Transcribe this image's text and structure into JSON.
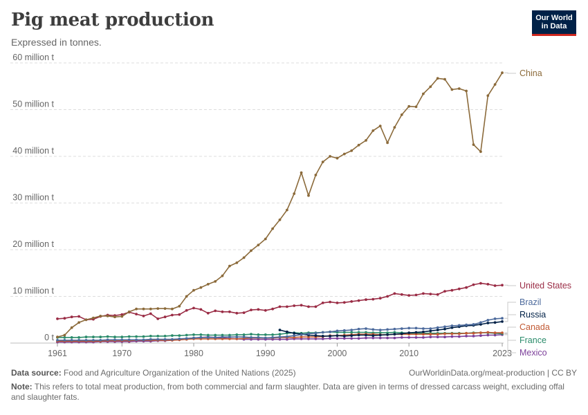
{
  "header": {
    "title": "Pig meat production",
    "subtitle": "Expressed in tonnes.",
    "logo_line1": "Our World",
    "logo_line2": "in Data"
  },
  "footer": {
    "source_label": "Data source:",
    "source_text": "Food and Agriculture Organization of the United Nations (2025)",
    "url": "OurWorldinData.org/meat-production | CC BY",
    "note_label": "Note:",
    "note_text": "This refers to total meat production, from both commercial and farm slaughter. Data are given in terms of dressed carcass weight, excluding offal and slaughter fats."
  },
  "chart_data": {
    "type": "line",
    "title": "Pig meat production",
    "subtitle": "Expressed in tonnes.",
    "ylim": [
      0,
      60000000
    ],
    "y_ticks": [
      {
        "value": 0,
        "label": "0 t"
      },
      {
        "value": 10000000,
        "label": "10 million t"
      },
      {
        "value": 20000000,
        "label": "20 million t"
      },
      {
        "value": 30000000,
        "label": "30 million t"
      },
      {
        "value": 40000000,
        "label": "40 million t"
      },
      {
        "value": 50000000,
        "label": "50 million t"
      },
      {
        "value": 60000000,
        "label": "60 million t"
      }
    ],
    "x_ticks": [
      1961,
      1970,
      1980,
      1990,
      2000,
      2010,
      2023
    ],
    "x_range": [
      1961,
      2023
    ],
    "grid": true,
    "legend": "right (inline labels)",
    "series": [
      {
        "name": "China",
        "color": "#8b6a3a",
        "x_start": 1961,
        "values": [
          1.3,
          1.7,
          3.3,
          4.4,
          5.0,
          5.4,
          5.8,
          5.8,
          5.6,
          5.7,
          6.7,
          7.3,
          7.3,
          7.3,
          7.4,
          7.4,
          7.3,
          7.9,
          10.0,
          11.3,
          11.9,
          12.6,
          13.2,
          14.4,
          16.5,
          17.2,
          18.3,
          19.8,
          21.0,
          22.3,
          24.5,
          26.4,
          28.5,
          32.0,
          36.5,
          31.6,
          36.0,
          38.8,
          40.0,
          39.6,
          40.5,
          41.2,
          42.4,
          43.4,
          45.5,
          46.5,
          42.9,
          46.2,
          48.9,
          50.7,
          50.6,
          53.4,
          54.9,
          56.7,
          56.5,
          54.3,
          54.5,
          54.0,
          42.5,
          41.0,
          53.0,
          55.4,
          57.9
        ]
      },
      {
        "name": "United States",
        "color": "#9a2c45",
        "x_start": 1961,
        "values": [
          5.2,
          5.3,
          5.6,
          5.7,
          5.0,
          5.1,
          5.7,
          6.0,
          5.9,
          6.1,
          6.6,
          6.2,
          5.8,
          6.3,
          5.2,
          5.6,
          6.0,
          6.1,
          7.0,
          7.5,
          7.2,
          6.4,
          6.9,
          6.7,
          6.7,
          6.4,
          6.5,
          7.1,
          7.2,
          7.0,
          7.3,
          7.8,
          7.8,
          8.0,
          8.1,
          7.8,
          7.8,
          8.6,
          8.8,
          8.6,
          8.7,
          8.9,
          9.1,
          9.3,
          9.4,
          9.6,
          10.0,
          10.6,
          10.4,
          10.2,
          10.3,
          10.6,
          10.5,
          10.4,
          11.1,
          11.3,
          11.6,
          11.9,
          12.5,
          12.8,
          12.6,
          12.3,
          12.4
        ]
      },
      {
        "name": "Brazil",
        "color": "#4c6a9c",
        "x_start": 1961,
        "values": [
          0.6,
          0.6,
          0.6,
          0.6,
          0.6,
          0.6,
          0.6,
          0.7,
          0.7,
          0.7,
          0.7,
          0.7,
          0.7,
          0.8,
          0.8,
          0.8,
          0.8,
          0.9,
          1.0,
          1.1,
          1.2,
          1.2,
          1.2,
          1.3,
          1.3,
          1.3,
          1.3,
          1.2,
          1.2,
          1.1,
          1.2,
          1.3,
          1.4,
          1.6,
          1.8,
          2.0,
          2.1,
          2.3,
          2.4,
          2.6,
          2.7,
          2.8,
          3.0,
          3.1,
          2.9,
          2.8,
          2.9,
          3.0,
          3.1,
          3.2,
          3.2,
          3.1,
          3.1,
          3.3,
          3.5,
          3.7,
          3.8,
          3.9,
          4.0,
          4.4,
          4.9,
          5.2,
          5.3
        ]
      },
      {
        "name": "Russia",
        "color": "#002147",
        "x_start": 1992,
        "values": [
          2.8,
          2.4,
          2.1,
          1.9,
          1.7,
          1.6,
          1.5,
          1.5,
          1.6,
          1.5,
          1.6,
          1.7,
          1.7,
          1.6,
          1.7,
          1.8,
          1.9,
          2.0,
          2.2,
          2.3,
          2.4,
          2.6,
          2.8,
          3.0,
          3.3,
          3.5,
          3.7,
          3.8,
          4.0,
          4.3,
          4.4,
          4.6
        ]
      },
      {
        "name": "Canada",
        "color": "#c15933",
        "x_start": 1961,
        "values": [
          0.4,
          0.4,
          0.4,
          0.4,
          0.4,
          0.4,
          0.4,
          0.5,
          0.5,
          0.5,
          0.5,
          0.6,
          0.6,
          0.6,
          0.6,
          0.6,
          0.6,
          0.7,
          0.8,
          0.9,
          0.9,
          0.9,
          0.9,
          0.9,
          0.9,
          0.9,
          1.0,
          1.1,
          1.1,
          1.1,
          1.1,
          1.2,
          1.2,
          1.2,
          1.3,
          1.3,
          1.3,
          1.4,
          1.6,
          1.6,
          1.7,
          1.8,
          1.9,
          1.9,
          1.9,
          1.8,
          1.8,
          1.9,
          1.9,
          1.9,
          1.9,
          1.9,
          1.9,
          1.9,
          2.0,
          2.0,
          2.0,
          2.1,
          2.1,
          2.2,
          2.3,
          2.2,
          2.2
        ]
      },
      {
        "name": "France",
        "color": "#2a8b6a",
        "x_start": 1961,
        "values": [
          1.2,
          1.2,
          1.2,
          1.2,
          1.3,
          1.3,
          1.3,
          1.4,
          1.3,
          1.3,
          1.4,
          1.4,
          1.4,
          1.5,
          1.5,
          1.5,
          1.6,
          1.6,
          1.7,
          1.8,
          1.8,
          1.7,
          1.7,
          1.7,
          1.7,
          1.8,
          1.8,
          1.9,
          1.8,
          1.8,
          1.8,
          1.9,
          2.1,
          2.2,
          2.1,
          2.2,
          2.2,
          2.3,
          2.4,
          2.3,
          2.3,
          2.3,
          2.3,
          2.3,
          2.2,
          2.2,
          2.2,
          2.3,
          2.2,
          2.1,
          2.1,
          2.1,
          2.1,
          2.1,
          2.1,
          2.1,
          2.1,
          2.1,
          2.2,
          2.2,
          2.2,
          2.1,
          2.0
        ]
      },
      {
        "name": "Mexico",
        "color": "#7c3f9a",
        "x_start": 1961,
        "values": [
          0.2,
          0.2,
          0.2,
          0.2,
          0.2,
          0.2,
          0.3,
          0.3,
          0.3,
          0.3,
          0.3,
          0.4,
          0.4,
          0.4,
          0.5,
          0.5,
          0.6,
          0.7,
          0.9,
          1.1,
          1.2,
          1.3,
          1.2,
          1.1,
          1.0,
          0.9,
          0.8,
          0.8,
          0.8,
          0.8,
          0.8,
          0.8,
          0.8,
          0.9,
          0.9,
          0.9,
          0.9,
          0.9,
          1.0,
          1.0,
          1.0,
          1.0,
          1.0,
          1.1,
          1.1,
          1.1,
          1.1,
          1.1,
          1.2,
          1.2,
          1.2,
          1.2,
          1.3,
          1.3,
          1.3,
          1.4,
          1.4,
          1.5,
          1.5,
          1.6,
          1.7,
          1.7,
          1.8
        ]
      }
    ]
  }
}
